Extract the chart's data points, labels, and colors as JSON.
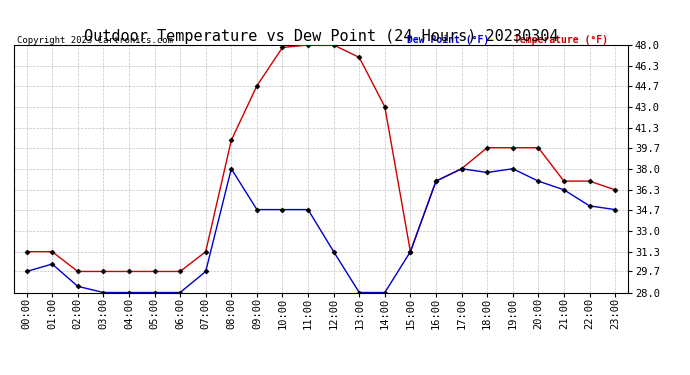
{
  "title": "Outdoor Temperature vs Dew Point (24 Hours) 20230304",
  "copyright": "Copyright 2023 Cartronics.com",
  "legend_dew": "Dew Point (°F)",
  "legend_temp": "Temperature (°F)",
  "hours": [
    "00:00",
    "01:00",
    "02:00",
    "03:00",
    "04:00",
    "05:00",
    "06:00",
    "07:00",
    "08:00",
    "09:00",
    "10:00",
    "11:00",
    "12:00",
    "13:00",
    "14:00",
    "15:00",
    "16:00",
    "17:00",
    "18:00",
    "19:00",
    "20:00",
    "21:00",
    "22:00",
    "23:00"
  ],
  "temperature": [
    31.3,
    31.3,
    29.7,
    29.7,
    29.7,
    29.7,
    29.7,
    31.3,
    40.3,
    44.7,
    47.8,
    48.0,
    48.0,
    47.0,
    43.0,
    31.3,
    37.0,
    38.0,
    39.7,
    39.7,
    39.7,
    37.0,
    37.0,
    36.3
  ],
  "dew_point": [
    29.7,
    30.3,
    28.5,
    28.0,
    28.0,
    28.0,
    28.0,
    29.7,
    38.0,
    34.7,
    34.7,
    34.7,
    31.3,
    28.0,
    28.0,
    31.3,
    37.0,
    38.0,
    37.7,
    38.0,
    37.0,
    36.3,
    35.0,
    34.7
  ],
  "temp_color": "#cc0000",
  "dew_color": "#0000cc",
  "ylim": [
    28.0,
    48.0
  ],
  "yticks": [
    28.0,
    29.7,
    31.3,
    33.0,
    34.7,
    36.3,
    38.0,
    39.7,
    41.3,
    43.0,
    44.7,
    46.3,
    48.0
  ],
  "bg_color": "#ffffff",
  "grid_color": "#aaaaaa",
  "title_fontsize": 11,
  "tick_fontsize": 7.5,
  "marker": "D",
  "marker_size": 2.5,
  "line_width": 1.0,
  "fig_width": 6.9,
  "fig_height": 3.75,
  "dpi": 100
}
